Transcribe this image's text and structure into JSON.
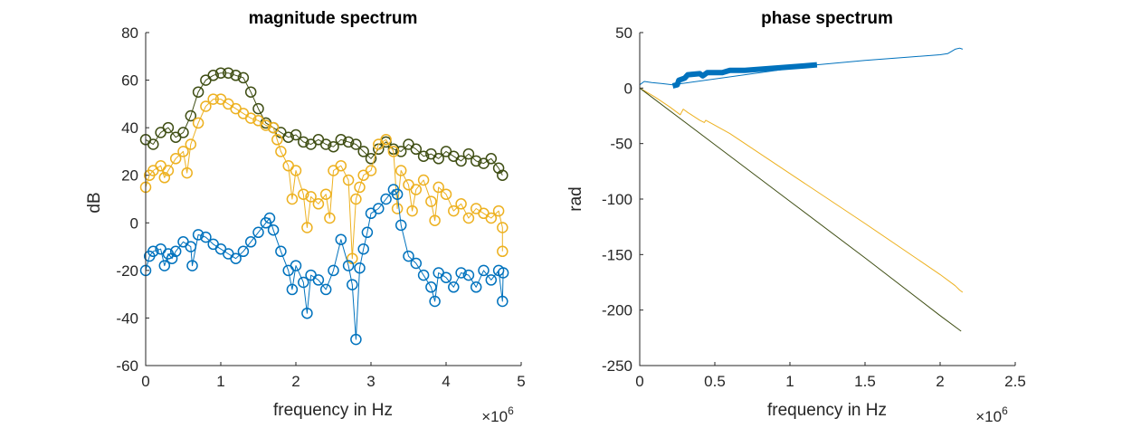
{
  "chart_data": [
    {
      "type": "line",
      "title": "magnitude spectrum",
      "xlabel": "frequency in Hz",
      "ylabel": "dB",
      "x_exponent_label": "×10",
      "x_exponent_power": "6",
      "xlim": [
        0,
        5000000
      ],
      "ylim": [
        -60,
        80
      ],
      "xticks": [
        0,
        1000000,
        2000000,
        3000000,
        4000000,
        5000000
      ],
      "xtick_labels": [
        "0",
        "1",
        "2",
        "3",
        "4",
        "5"
      ],
      "yticks": [
        -60,
        -40,
        -20,
        0,
        20,
        40,
        60,
        80
      ],
      "ytick_labels": [
        "-60",
        "-40",
        "-20",
        "0",
        "20",
        "40",
        "60",
        "80"
      ],
      "marker": "circle",
      "grid": false,
      "series": [
        {
          "color": "#3f4e14",
          "points": [
            [
              0,
              35
            ],
            [
              100000,
              33
            ],
            [
              200000,
              38
            ],
            [
              300000,
              40
            ],
            [
              400000,
              36
            ],
            [
              500000,
              38
            ],
            [
              600000,
              45
            ],
            [
              700000,
              55
            ],
            [
              800000,
              60
            ],
            [
              900000,
              62
            ],
            [
              1000000,
              63
            ],
            [
              1100000,
              63
            ],
            [
              1200000,
              62
            ],
            [
              1300000,
              61
            ],
            [
              1400000,
              55
            ],
            [
              1500000,
              48
            ],
            [
              1600000,
              42
            ],
            [
              1700000,
              40
            ],
            [
              1800000,
              38
            ],
            [
              1900000,
              36
            ],
            [
              2000000,
              37
            ],
            [
              2100000,
              34
            ],
            [
              2200000,
              33
            ],
            [
              2300000,
              35
            ],
            [
              2400000,
              33
            ],
            [
              2500000,
              32
            ],
            [
              2600000,
              35
            ],
            [
              2700000,
              34
            ],
            [
              2800000,
              33
            ],
            [
              2900000,
              30
            ],
            [
              3000000,
              27
            ],
            [
              3100000,
              31
            ],
            [
              3200000,
              34
            ],
            [
              3300000,
              31
            ],
            [
              3400000,
              30
            ],
            [
              3500000,
              33
            ],
            [
              3600000,
              31
            ],
            [
              3700000,
              28
            ],
            [
              3800000,
              29
            ],
            [
              3900000,
              27
            ],
            [
              4000000,
              30
            ],
            [
              4100000,
              28
            ],
            [
              4200000,
              26
            ],
            [
              4300000,
              29
            ],
            [
              4400000,
              26
            ],
            [
              4500000,
              25
            ],
            [
              4600000,
              27
            ],
            [
              4700000,
              23
            ],
            [
              4750000,
              20
            ]
          ]
        },
        {
          "color": "#edb120",
          "points": [
            [
              0,
              15
            ],
            [
              50000,
              20
            ],
            [
              100000,
              22
            ],
            [
              200000,
              24
            ],
            [
              250000,
              19
            ],
            [
              300000,
              22
            ],
            [
              400000,
              27
            ],
            [
              500000,
              30
            ],
            [
              550000,
              21
            ],
            [
              600000,
              33
            ],
            [
              700000,
              42
            ],
            [
              800000,
              49
            ],
            [
              900000,
              52
            ],
            [
              1000000,
              52
            ],
            [
              1100000,
              50
            ],
            [
              1200000,
              48
            ],
            [
              1300000,
              46
            ],
            [
              1400000,
              44
            ],
            [
              1500000,
              43
            ],
            [
              1600000,
              41
            ],
            [
              1700000,
              40
            ],
            [
              1750000,
              35
            ],
            [
              1800000,
              30
            ],
            [
              1900000,
              24
            ],
            [
              1950000,
              10
            ],
            [
              2000000,
              22
            ],
            [
              2100000,
              12
            ],
            [
              2150000,
              -2
            ],
            [
              2200000,
              11
            ],
            [
              2300000,
              8
            ],
            [
              2400000,
              12
            ],
            [
              2450000,
              2
            ],
            [
              2500000,
              22
            ],
            [
              2600000,
              24
            ],
            [
              2700000,
              18
            ],
            [
              2750000,
              -15
            ],
            [
              2800000,
              10
            ],
            [
              2850000,
              15
            ],
            [
              2900000,
              20
            ],
            [
              3000000,
              22
            ],
            [
              3100000,
              33
            ],
            [
              3200000,
              35
            ],
            [
              3300000,
              30
            ],
            [
              3350000,
              6
            ],
            [
              3400000,
              22
            ],
            [
              3500000,
              16
            ],
            [
              3550000,
              5
            ],
            [
              3600000,
              14
            ],
            [
              3700000,
              18
            ],
            [
              3800000,
              9
            ],
            [
              3850000,
              1
            ],
            [
              3900000,
              15
            ],
            [
              4000000,
              12
            ],
            [
              4100000,
              5
            ],
            [
              4200000,
              8
            ],
            [
              4300000,
              2
            ],
            [
              4400000,
              6
            ],
            [
              4500000,
              4
            ],
            [
              4600000,
              2
            ],
            [
              4700000,
              5
            ],
            [
              4750000,
              -2
            ],
            [
              4750000,
              -12
            ]
          ]
        },
        {
          "color": "#0072bd",
          "points": [
            [
              0,
              -20
            ],
            [
              50000,
              -14
            ],
            [
              100000,
              -12
            ],
            [
              200000,
              -11
            ],
            [
              250000,
              -18
            ],
            [
              300000,
              -13
            ],
            [
              350000,
              -15
            ],
            [
              400000,
              -12
            ],
            [
              500000,
              -8
            ],
            [
              600000,
              -10
            ],
            [
              620000,
              -18
            ],
            [
              700000,
              -5
            ],
            [
              800000,
              -6
            ],
            [
              900000,
              -9
            ],
            [
              1000000,
              -11
            ],
            [
              1100000,
              -13
            ],
            [
              1200000,
              -15
            ],
            [
              1300000,
              -12
            ],
            [
              1400000,
              -8
            ],
            [
              1500000,
              -4
            ],
            [
              1600000,
              0
            ],
            [
              1650000,
              2
            ],
            [
              1700000,
              -3
            ],
            [
              1800000,
              -12
            ],
            [
              1900000,
              -20
            ],
            [
              1950000,
              -28
            ],
            [
              2000000,
              -18
            ],
            [
              2100000,
              -25
            ],
            [
              2150000,
              -38
            ],
            [
              2200000,
              -22
            ],
            [
              2300000,
              -24
            ],
            [
              2400000,
              -28
            ],
            [
              2500000,
              -20
            ],
            [
              2600000,
              -7
            ],
            [
              2700000,
              -18
            ],
            [
              2750000,
              -26
            ],
            [
              2800000,
              -49
            ],
            [
              2850000,
              -19
            ],
            [
              2900000,
              -11
            ],
            [
              2950000,
              -4
            ],
            [
              3000000,
              4
            ],
            [
              3100000,
              6
            ],
            [
              3200000,
              10
            ],
            [
              3300000,
              14
            ],
            [
              3350000,
              12
            ],
            [
              3400000,
              -1
            ],
            [
              3500000,
              -14
            ],
            [
              3600000,
              -17
            ],
            [
              3700000,
              -22
            ],
            [
              3800000,
              -27
            ],
            [
              3850000,
              -33
            ],
            [
              3900000,
              -21
            ],
            [
              4000000,
              -23
            ],
            [
              4100000,
              -27
            ],
            [
              4200000,
              -21
            ],
            [
              4300000,
              -22
            ],
            [
              4400000,
              -27
            ],
            [
              4500000,
              -20
            ],
            [
              4600000,
              -24
            ],
            [
              4700000,
              -20
            ],
            [
              4750000,
              -33
            ],
            [
              4760000,
              -21
            ]
          ]
        }
      ]
    },
    {
      "type": "line",
      "title": "phase spectrum",
      "xlabel": "frequency in Hz",
      "ylabel": "rad",
      "x_exponent_label": "×10",
      "x_exponent_power": "6",
      "xlim": [
        0,
        2500000
      ],
      "ylim": [
        -250,
        50
      ],
      "xticks": [
        0,
        500000,
        1000000,
        1500000,
        2000000,
        2500000
      ],
      "xtick_labels": [
        "0",
        "0.5",
        "1",
        "1.5",
        "2",
        "2.5"
      ],
      "yticks": [
        -250,
        -200,
        -150,
        -100,
        -50,
        0,
        50
      ],
      "ytick_labels": [
        "-250",
        "-200",
        "-150",
        "-100",
        "-50",
        "0",
        "50"
      ],
      "grid": false,
      "series": [
        {
          "color": "#0072bd",
          "width": 1,
          "points": [
            [
              0,
              3
            ],
            [
              30000,
              6
            ],
            [
              80000,
              5
            ],
            [
              150000,
              4
            ],
            [
              220000,
              3
            ],
            [
              1180000,
              21
            ],
            [
              1500000,
              25
            ],
            [
              1800000,
              28
            ],
            [
              2000000,
              30
            ],
            [
              2050000,
              31
            ],
            [
              2100000,
              35
            ],
            [
              2130000,
              36
            ],
            [
              2150000,
              35
            ]
          ]
        },
        {
          "color": "#0072bd",
          "width": 6,
          "points": [
            [
              220000,
              2
            ],
            [
              250000,
              3
            ],
            [
              260000,
              7
            ],
            [
              300000,
              9
            ],
            [
              320000,
              12
            ],
            [
              400000,
              13
            ],
            [
              420000,
              11
            ],
            [
              450000,
              14
            ],
            [
              550000,
              14
            ],
            [
              600000,
              16
            ],
            [
              700000,
              16
            ],
            [
              800000,
              17
            ],
            [
              900000,
              18
            ],
            [
              1000000,
              19
            ],
            [
              1100000,
              20
            ],
            [
              1180000,
              21
            ]
          ]
        },
        {
          "color": "#edb120",
          "width": 1,
          "points": [
            [
              0,
              0
            ],
            [
              100000,
              -8
            ],
            [
              200000,
              -17
            ],
            [
              270000,
              -24
            ],
            [
              290000,
              -19
            ],
            [
              320000,
              -22
            ],
            [
              400000,
              -29
            ],
            [
              430000,
              -31
            ],
            [
              440000,
              -29
            ],
            [
              480000,
              -32
            ],
            [
              600000,
              -41
            ],
            [
              1000000,
              -77
            ],
            [
              1500000,
              -122
            ],
            [
              2000000,
              -168
            ],
            [
              2100000,
              -178
            ],
            [
              2130000,
              -182
            ],
            [
              2150000,
              -184
            ]
          ]
        },
        {
          "color": "#3f4e14",
          "width": 1,
          "points": [
            [
              0,
              0
            ],
            [
              500000,
              -51
            ],
            [
              1000000,
              -102
            ],
            [
              1500000,
              -153
            ],
            [
              2000000,
              -205
            ],
            [
              2140000,
              -219
            ]
          ]
        }
      ]
    }
  ]
}
